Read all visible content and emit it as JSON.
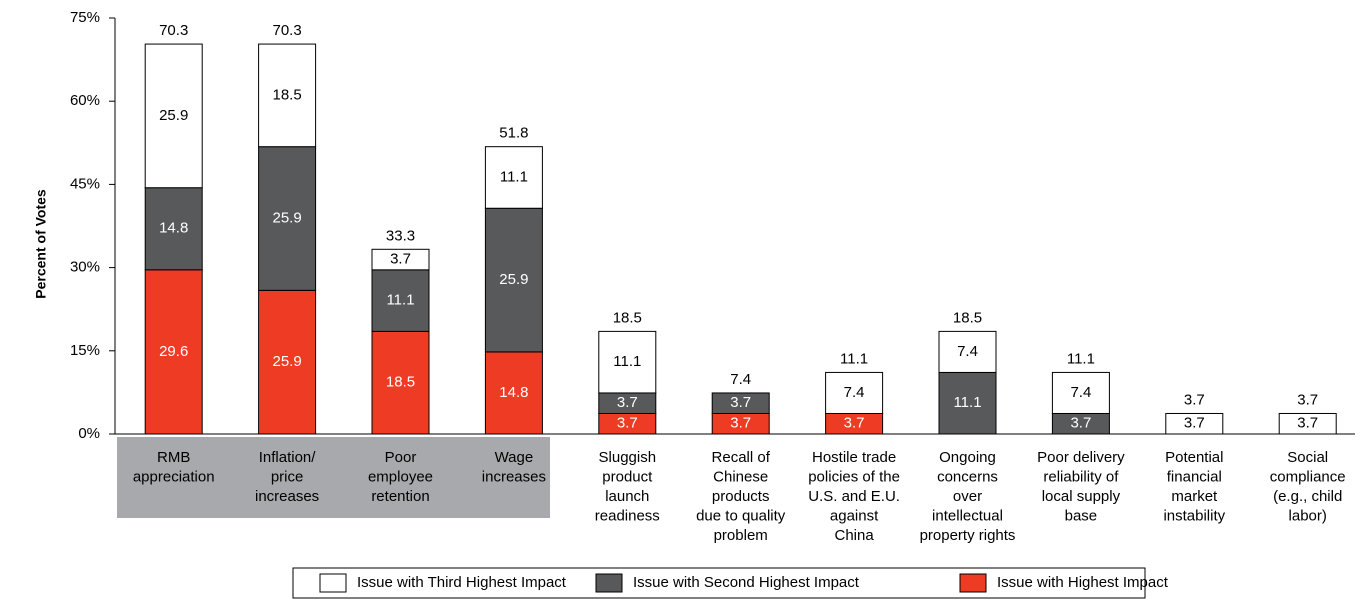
{
  "chart_data": {
    "type": "stacked_bar",
    "y_label": "Percent of Votes",
    "categories": [
      [
        "RMB",
        "appreciation"
      ],
      [
        "Inflation/",
        "price",
        "increases"
      ],
      [
        "Poor",
        "employee",
        "retention"
      ],
      [
        "Wage",
        "increases"
      ],
      [
        "Sluggish",
        "product",
        "launch",
        "readiness"
      ],
      [
        "Recall of",
        "Chinese",
        "products",
        "due to quality",
        "problem"
      ],
      [
        "Hostile trade",
        "policies of the",
        "U.S. and E.U.",
        "against",
        "China"
      ],
      [
        "Ongoing",
        "concerns",
        "over",
        "intellectual",
        "property rights"
      ],
      [
        "Poor delivery",
        "reliability of",
        "local supply",
        "base"
      ],
      [
        "Potential",
        "financial",
        "market",
        "instability"
      ],
      [
        "Social",
        "compliance",
        "(e.g., child",
        "labor)"
      ]
    ],
    "series": [
      {
        "name": "Issue with Highest Impact",
        "color": "#ee3b24",
        "text_color": "#ffffff",
        "values": [
          29.6,
          25.9,
          18.5,
          14.8,
          3.7,
          3.7,
          3.7,
          null,
          null,
          null,
          null
        ]
      },
      {
        "name": "Issue with Second Highest Impact",
        "color": "#58595b",
        "text_color": "#ffffff",
        "values": [
          14.8,
          25.9,
          11.1,
          25.9,
          3.7,
          3.7,
          null,
          11.1,
          3.7,
          null,
          null
        ]
      },
      {
        "name": "Issue with Third Highest Impact",
        "color": "#ffffff",
        "text_color": "#000000",
        "values": [
          25.9,
          18.5,
          3.7,
          11.1,
          11.1,
          null,
          7.4,
          7.4,
          7.4,
          3.7,
          3.7
        ]
      }
    ],
    "totals": [
      70.3,
      70.3,
      33.3,
      51.8,
      18.5,
      7.4,
      11.1,
      18.5,
      11.1,
      3.7,
      3.7
    ],
    "ylim": [
      0,
      75
    ],
    "yticks": [
      {
        "value": 0,
        "label": "0%"
      },
      {
        "value": 15,
        "label": "15%"
      },
      {
        "value": 30,
        "label": "30%"
      },
      {
        "value": 45,
        "label": "45%"
      },
      {
        "value": 60,
        "label": "60%"
      },
      {
        "value": 75,
        "label": "75%"
      }
    ],
    "legend_position": "bottom"
  }
}
